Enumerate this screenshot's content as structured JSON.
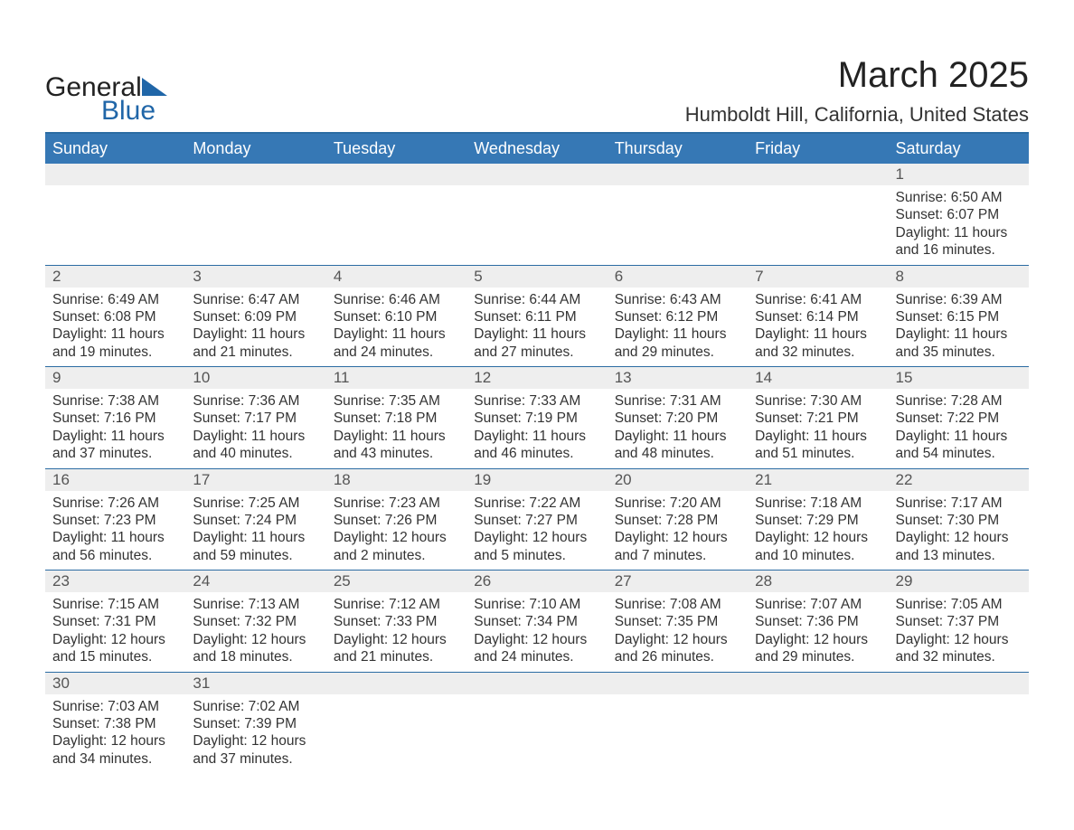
{
  "logo": {
    "word1": "General",
    "word2": "Blue"
  },
  "title": "March 2025",
  "location": "Humboldt Hill, California, United States",
  "days_of_week": [
    "Sunday",
    "Monday",
    "Tuesday",
    "Wednesday",
    "Thursday",
    "Friday",
    "Saturday"
  ],
  "colors": {
    "header_bg": "#3678b5",
    "header_text": "#ffffff",
    "row_border": "#2b6ca3",
    "daynum_bg": "#eeeeee",
    "body_text": "#333333",
    "logo_accent": "#2066a8"
  },
  "weeks": [
    [
      {
        "empty": true
      },
      {
        "empty": true
      },
      {
        "empty": true
      },
      {
        "empty": true
      },
      {
        "empty": true
      },
      {
        "empty": true
      },
      {
        "n": "1",
        "sunrise": "Sunrise: 6:50 AM",
        "sunset": "Sunset: 6:07 PM",
        "dl1": "Daylight: 11 hours",
        "dl2": "and 16 minutes."
      }
    ],
    [
      {
        "n": "2",
        "sunrise": "Sunrise: 6:49 AM",
        "sunset": "Sunset: 6:08 PM",
        "dl1": "Daylight: 11 hours",
        "dl2": "and 19 minutes."
      },
      {
        "n": "3",
        "sunrise": "Sunrise: 6:47 AM",
        "sunset": "Sunset: 6:09 PM",
        "dl1": "Daylight: 11 hours",
        "dl2": "and 21 minutes."
      },
      {
        "n": "4",
        "sunrise": "Sunrise: 6:46 AM",
        "sunset": "Sunset: 6:10 PM",
        "dl1": "Daylight: 11 hours",
        "dl2": "and 24 minutes."
      },
      {
        "n": "5",
        "sunrise": "Sunrise: 6:44 AM",
        "sunset": "Sunset: 6:11 PM",
        "dl1": "Daylight: 11 hours",
        "dl2": "and 27 minutes."
      },
      {
        "n": "6",
        "sunrise": "Sunrise: 6:43 AM",
        "sunset": "Sunset: 6:12 PM",
        "dl1": "Daylight: 11 hours",
        "dl2": "and 29 minutes."
      },
      {
        "n": "7",
        "sunrise": "Sunrise: 6:41 AM",
        "sunset": "Sunset: 6:14 PM",
        "dl1": "Daylight: 11 hours",
        "dl2": "and 32 minutes."
      },
      {
        "n": "8",
        "sunrise": "Sunrise: 6:39 AM",
        "sunset": "Sunset: 6:15 PM",
        "dl1": "Daylight: 11 hours",
        "dl2": "and 35 minutes."
      }
    ],
    [
      {
        "n": "9",
        "sunrise": "Sunrise: 7:38 AM",
        "sunset": "Sunset: 7:16 PM",
        "dl1": "Daylight: 11 hours",
        "dl2": "and 37 minutes."
      },
      {
        "n": "10",
        "sunrise": "Sunrise: 7:36 AM",
        "sunset": "Sunset: 7:17 PM",
        "dl1": "Daylight: 11 hours",
        "dl2": "and 40 minutes."
      },
      {
        "n": "11",
        "sunrise": "Sunrise: 7:35 AM",
        "sunset": "Sunset: 7:18 PM",
        "dl1": "Daylight: 11 hours",
        "dl2": "and 43 minutes."
      },
      {
        "n": "12",
        "sunrise": "Sunrise: 7:33 AM",
        "sunset": "Sunset: 7:19 PM",
        "dl1": "Daylight: 11 hours",
        "dl2": "and 46 minutes."
      },
      {
        "n": "13",
        "sunrise": "Sunrise: 7:31 AM",
        "sunset": "Sunset: 7:20 PM",
        "dl1": "Daylight: 11 hours",
        "dl2": "and 48 minutes."
      },
      {
        "n": "14",
        "sunrise": "Sunrise: 7:30 AM",
        "sunset": "Sunset: 7:21 PM",
        "dl1": "Daylight: 11 hours",
        "dl2": "and 51 minutes."
      },
      {
        "n": "15",
        "sunrise": "Sunrise: 7:28 AM",
        "sunset": "Sunset: 7:22 PM",
        "dl1": "Daylight: 11 hours",
        "dl2": "and 54 minutes."
      }
    ],
    [
      {
        "n": "16",
        "sunrise": "Sunrise: 7:26 AM",
        "sunset": "Sunset: 7:23 PM",
        "dl1": "Daylight: 11 hours",
        "dl2": "and 56 minutes."
      },
      {
        "n": "17",
        "sunrise": "Sunrise: 7:25 AM",
        "sunset": "Sunset: 7:24 PM",
        "dl1": "Daylight: 11 hours",
        "dl2": "and 59 minutes."
      },
      {
        "n": "18",
        "sunrise": "Sunrise: 7:23 AM",
        "sunset": "Sunset: 7:26 PM",
        "dl1": "Daylight: 12 hours",
        "dl2": "and 2 minutes."
      },
      {
        "n": "19",
        "sunrise": "Sunrise: 7:22 AM",
        "sunset": "Sunset: 7:27 PM",
        "dl1": "Daylight: 12 hours",
        "dl2": "and 5 minutes."
      },
      {
        "n": "20",
        "sunrise": "Sunrise: 7:20 AM",
        "sunset": "Sunset: 7:28 PM",
        "dl1": "Daylight: 12 hours",
        "dl2": "and 7 minutes."
      },
      {
        "n": "21",
        "sunrise": "Sunrise: 7:18 AM",
        "sunset": "Sunset: 7:29 PM",
        "dl1": "Daylight: 12 hours",
        "dl2": "and 10 minutes."
      },
      {
        "n": "22",
        "sunrise": "Sunrise: 7:17 AM",
        "sunset": "Sunset: 7:30 PM",
        "dl1": "Daylight: 12 hours",
        "dl2": "and 13 minutes."
      }
    ],
    [
      {
        "n": "23",
        "sunrise": "Sunrise: 7:15 AM",
        "sunset": "Sunset: 7:31 PM",
        "dl1": "Daylight: 12 hours",
        "dl2": "and 15 minutes."
      },
      {
        "n": "24",
        "sunrise": "Sunrise: 7:13 AM",
        "sunset": "Sunset: 7:32 PM",
        "dl1": "Daylight: 12 hours",
        "dl2": "and 18 minutes."
      },
      {
        "n": "25",
        "sunrise": "Sunrise: 7:12 AM",
        "sunset": "Sunset: 7:33 PM",
        "dl1": "Daylight: 12 hours",
        "dl2": "and 21 minutes."
      },
      {
        "n": "26",
        "sunrise": "Sunrise: 7:10 AM",
        "sunset": "Sunset: 7:34 PM",
        "dl1": "Daylight: 12 hours",
        "dl2": "and 24 minutes."
      },
      {
        "n": "27",
        "sunrise": "Sunrise: 7:08 AM",
        "sunset": "Sunset: 7:35 PM",
        "dl1": "Daylight: 12 hours",
        "dl2": "and 26 minutes."
      },
      {
        "n": "28",
        "sunrise": "Sunrise: 7:07 AM",
        "sunset": "Sunset: 7:36 PM",
        "dl1": "Daylight: 12 hours",
        "dl2": "and 29 minutes."
      },
      {
        "n": "29",
        "sunrise": "Sunrise: 7:05 AM",
        "sunset": "Sunset: 7:37 PM",
        "dl1": "Daylight: 12 hours",
        "dl2": "and 32 minutes."
      }
    ],
    [
      {
        "n": "30",
        "sunrise": "Sunrise: 7:03 AM",
        "sunset": "Sunset: 7:38 PM",
        "dl1": "Daylight: 12 hours",
        "dl2": "and 34 minutes."
      },
      {
        "n": "31",
        "sunrise": "Sunrise: 7:02 AM",
        "sunset": "Sunset: 7:39 PM",
        "dl1": "Daylight: 12 hours",
        "dl2": "and 37 minutes."
      },
      {
        "empty": true
      },
      {
        "empty": true
      },
      {
        "empty": true
      },
      {
        "empty": true
      },
      {
        "empty": true
      }
    ]
  ]
}
